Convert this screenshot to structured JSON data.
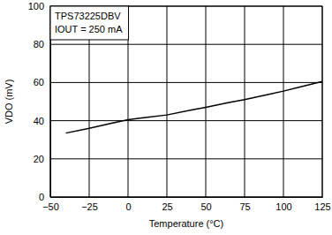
{
  "chart_data": {
    "type": "line",
    "x_label": "Temperature (°C)",
    "y_label": "VDO (mV)",
    "annotations": [
      "TPS73225DBV",
      "IOUT = 250 mA"
    ],
    "x": [
      -40,
      -25,
      -10,
      0,
      10,
      25,
      40,
      50,
      65,
      75,
      90,
      100,
      110,
      125
    ],
    "series": [
      {
        "name": "TPS73225DBV",
        "color": "#000000",
        "values": [
          33.5,
          36,
          38.8,
          40.5,
          41.5,
          43,
          45.5,
          47,
          49.5,
          51,
          53.7,
          55.5,
          57.5,
          60.5
        ]
      }
    ],
    "xlim": [
      -50,
      125
    ],
    "xticks": [
      {
        "value": -50,
        "label": "−50"
      },
      {
        "value": -25,
        "label": "−25"
      },
      0,
      25,
      50,
      75,
      100,
      125
    ],
    "ylim": [
      0,
      100
    ],
    "yticks": [
      0,
      20,
      40,
      60,
      80,
      100
    ],
    "grid": true
  }
}
